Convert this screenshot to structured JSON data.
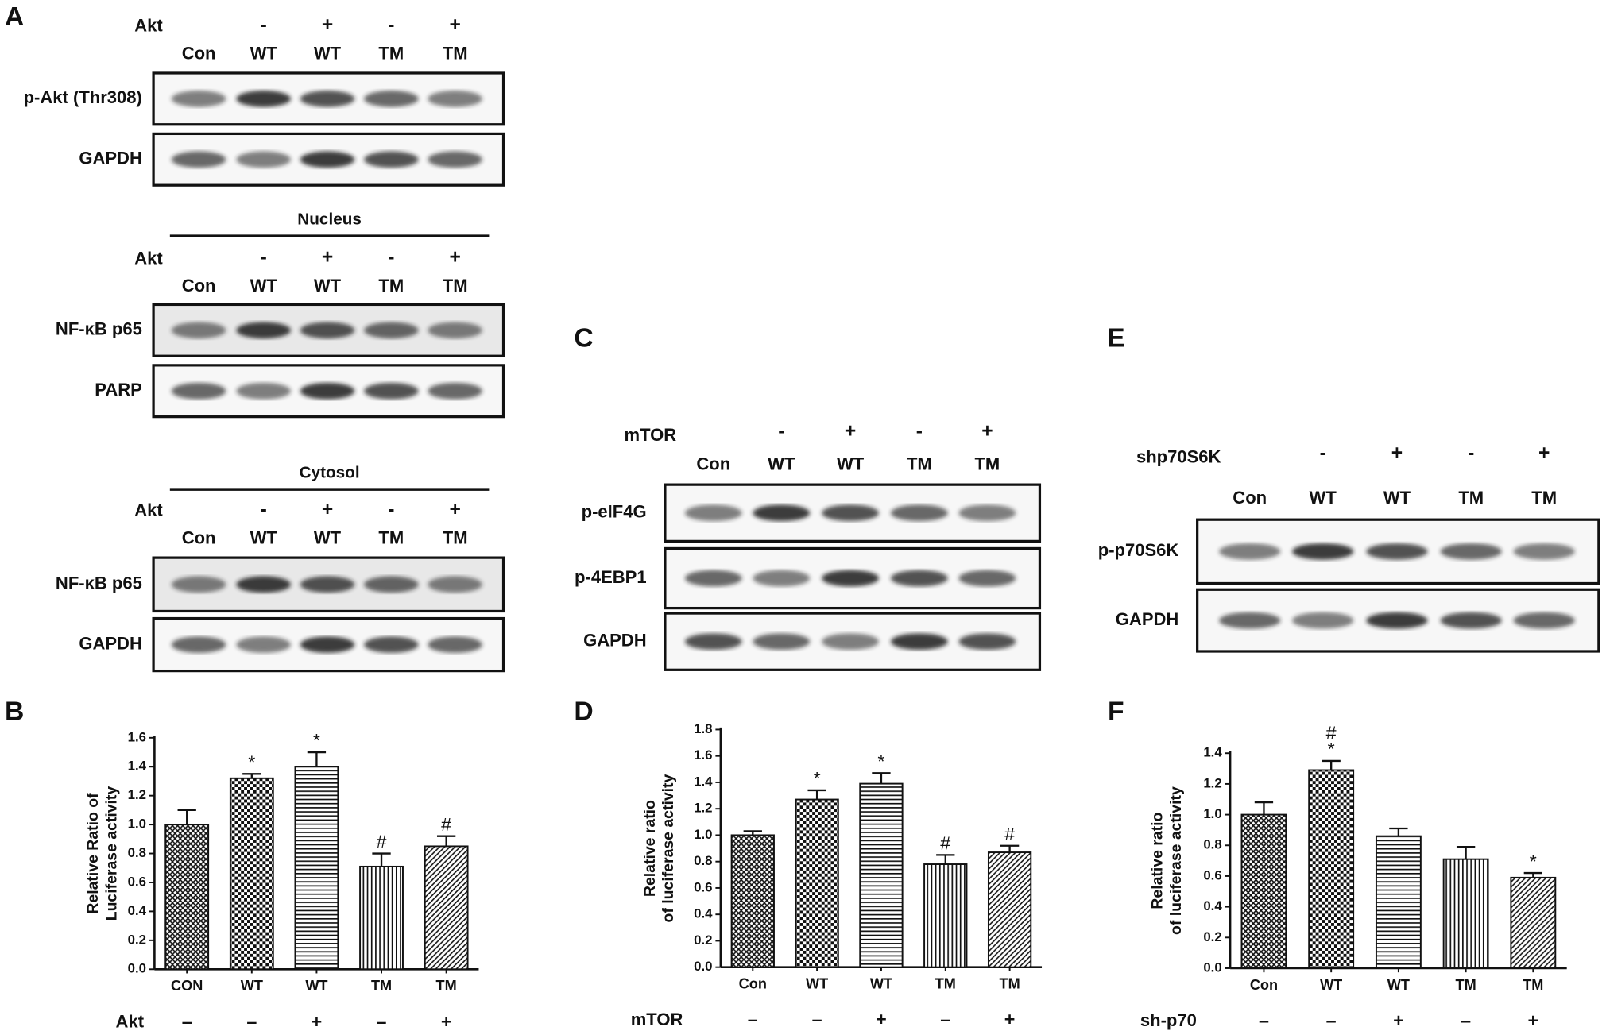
{
  "blots": [
    {
      "panel": "A",
      "groups": [
        {
          "treatment": "Akt",
          "signs": [
            null,
            "-",
            "+",
            "-",
            "+"
          ],
          "lanes": [
            "Con",
            "WT",
            "WT",
            "TM",
            "TM"
          ],
          "rows": [
            "p-Akt (Thr308)",
            "GAPDH"
          ]
        },
        {
          "header": "Nucleus",
          "treatment": "Akt",
          "signs": [
            null,
            "-",
            "+",
            "-",
            "+"
          ],
          "lanes": [
            "Con",
            "WT",
            "WT",
            "TM",
            "TM"
          ],
          "rows": [
            "NF-κB p65",
            "PARP"
          ]
        },
        {
          "header": "Cytosol",
          "treatment": "Akt",
          "signs": [
            null,
            "-",
            "+",
            "-",
            "+"
          ],
          "lanes": [
            "Con",
            "WT",
            "WT",
            "TM",
            "TM"
          ],
          "rows": [
            "NF-κB p65",
            "GAPDH"
          ]
        }
      ]
    },
    {
      "panel": "C",
      "groups": [
        {
          "treatment": "mTOR",
          "signs": [
            null,
            "-",
            "+",
            "-",
            "+"
          ],
          "lanes": [
            "Con",
            "WT",
            "WT",
            "TM",
            "TM"
          ],
          "rows": [
            "p-eIF4G",
            "p-4EBP1",
            "GAPDH"
          ]
        }
      ]
    },
    {
      "panel": "E",
      "groups": [
        {
          "treatment": "shp70S6K",
          "signs": [
            null,
            "-",
            "+",
            "-",
            "+"
          ],
          "lanes": [
            "Con",
            "WT",
            "WT",
            "TM",
            "TM"
          ],
          "rows": [
            "p-p70S6K",
            "GAPDH"
          ]
        }
      ]
    }
  ],
  "chart_data": [
    {
      "type": "bar",
      "panel": "B",
      "ylabel": [
        "Relative Ratio of",
        "Luciferase activity"
      ],
      "categories": [
        "CON",
        "WT",
        "WT",
        "TM",
        "TM"
      ],
      "values": [
        1.0,
        1.32,
        1.4,
        0.71,
        0.85
      ],
      "errors": [
        0.1,
        0.03,
        0.1,
        0.09,
        0.07
      ],
      "markers": [
        null,
        [
          "*"
        ],
        [
          "*"
        ],
        [
          "#"
        ],
        [
          "#"
        ]
      ],
      "patterns": [
        "crosshatch",
        "checker",
        "horizontal",
        "vertical",
        "diagonal"
      ],
      "treatment_label": "Akt",
      "treatment": [
        "–",
        "–",
        "+",
        "–",
        "+"
      ],
      "ylim": [
        0,
        1.6
      ],
      "yticks": [
        {
          "value": 0,
          "label": "0.0"
        },
        0.2,
        0.4,
        0.6,
        0.8,
        {
          "value": 1,
          "label": "1.0"
        },
        1.2,
        1.4,
        1.6
      ]
    },
    {
      "type": "bar",
      "panel": "D",
      "ylabel": [
        "Relative ratio",
        "of luciferase activity"
      ],
      "categories": [
        "Con",
        "WT",
        "WT",
        "TM",
        "TM"
      ],
      "values": [
        1.0,
        1.27,
        1.39,
        0.78,
        0.87
      ],
      "errors": [
        0.03,
        0.07,
        0.08,
        0.07,
        0.05
      ],
      "markers": [
        null,
        [
          "*"
        ],
        [
          "*"
        ],
        [
          "#"
        ],
        [
          "#"
        ]
      ],
      "patterns": [
        "crosshatch",
        "checker",
        "horizontal",
        "vertical",
        "diagonal"
      ],
      "treatment_label": "mTOR",
      "treatment": [
        "–",
        "–",
        "+",
        "–",
        "+"
      ],
      "ylim": [
        0,
        1.8
      ],
      "yticks": [
        {
          "value": 0,
          "label": "0.0"
        },
        0.2,
        0.4,
        0.6,
        0.8,
        {
          "value": 1,
          "label": "1.0"
        },
        1.2,
        1.4,
        1.6,
        1.8
      ]
    },
    {
      "type": "bar",
      "panel": "F",
      "ylabel": [
        "Relative ratio",
        "of luciferase activity"
      ],
      "categories": [
        "Con",
        "WT",
        "WT",
        "TM",
        "TM"
      ],
      "values": [
        1.0,
        1.29,
        0.86,
        0.71,
        0.59
      ],
      "errors": [
        0.08,
        0.06,
        0.05,
        0.08,
        0.03
      ],
      "markers": [
        null,
        [
          "*",
          "#"
        ],
        null,
        null,
        [
          "*"
        ]
      ],
      "patterns": [
        "crosshatch",
        "checker",
        "horizontal",
        "vertical",
        "diagonal"
      ],
      "treatment_label": "sh-p70",
      "treatment": [
        "–",
        "–",
        "+",
        "–",
        "+"
      ],
      "ylim": [
        0,
        1.4
      ],
      "yticks": [
        {
          "value": 0,
          "label": "0.0"
        },
        0.2,
        0.4,
        0.6,
        0.8,
        {
          "value": 1,
          "label": "1.0"
        },
        1.2,
        1.4
      ]
    }
  ]
}
